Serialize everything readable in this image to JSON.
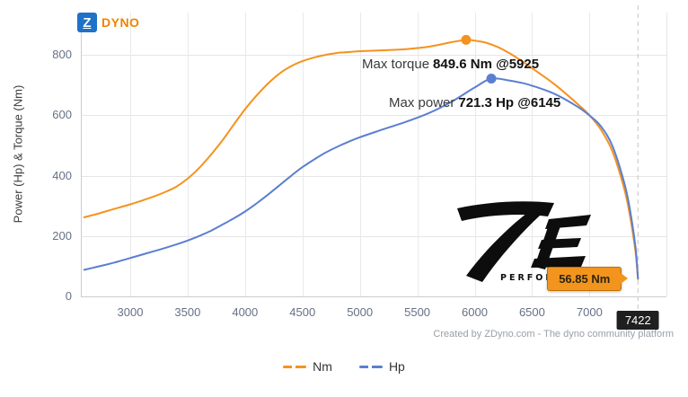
{
  "logo": {
    "z": "Z",
    "text": "DYNO"
  },
  "watermark": {
    "label": "PERFORMANCE"
  },
  "credit": "Created by ZDyno.com - The dyno community platform",
  "chart_data": {
    "type": "line",
    "ylabel": "Power (Hp) & Torque (Nm)",
    "yticks": [
      0,
      200,
      400,
      600,
      800
    ],
    "xticks": [
      3000,
      3500,
      4000,
      4500,
      5000,
      5500,
      6000,
      6500,
      7000
    ],
    "xlim": [
      2570,
      7670
    ],
    "ylim": [
      0,
      940
    ],
    "grid": true,
    "legend_position": "bottom",
    "annotations": {
      "max_torque": {
        "label": "Max torque",
        "value": "849.6 Nm @5925"
      },
      "max_power": {
        "label": "Max power",
        "value": "721.3 Hp @6145"
      }
    },
    "cursor": {
      "rpm": 7422,
      "value": 56.85,
      "label": "56.85 Nm",
      "box_color": "#f2941d",
      "border_color": "#c06f00",
      "x_label_bg": "#1f1f1f"
    },
    "series": [
      {
        "name": "Nm",
        "color": "#f5921e",
        "peak": {
          "x": 5925,
          "y": 849.6
        },
        "x": [
          2600,
          2700,
          2800,
          2900,
          3000,
          3100,
          3200,
          3300,
          3400,
          3500,
          3600,
          3700,
          3800,
          3900,
          4000,
          4100,
          4200,
          4300,
          4400,
          4500,
          4600,
          4700,
          4800,
          4900,
          5000,
          5200,
          5400,
          5600,
          5800,
          5925,
          6000,
          6100,
          6200,
          6300,
          6400,
          6500,
          6700,
          6900,
          7000,
          7100,
          7200,
          7300,
          7350,
          7400,
          7422
        ],
        "y": [
          262,
          272,
          283,
          294,
          305,
          317,
          330,
          345,
          363,
          390,
          425,
          468,
          515,
          568,
          620,
          665,
          705,
          738,
          762,
          779,
          791,
          800,
          806,
          809,
          812,
          815,
          819,
          827,
          842,
          849.6,
          847,
          840,
          826,
          806,
          782,
          756,
          701,
          636,
          600,
          552,
          480,
          360,
          272,
          150,
          56.85
        ]
      },
      {
        "name": "Hp",
        "color": "#5b7fd0",
        "peak": {
          "x": 6145,
          "y": 721.3
        },
        "x": [
          2600,
          2700,
          2800,
          2900,
          3000,
          3100,
          3200,
          3300,
          3400,
          3500,
          3600,
          3700,
          3800,
          3900,
          4000,
          4100,
          4200,
          4300,
          4400,
          4500,
          4600,
          4700,
          4800,
          4900,
          5000,
          5200,
          5400,
          5600,
          5800,
          6000,
          6145,
          6300,
          6400,
          6500,
          6700,
          6900,
          7000,
          7100,
          7200,
          7300,
          7350,
          7400,
          7422
        ],
        "y": [
          88,
          97,
          106,
          116,
          127,
          138,
          149,
          160,
          172,
          185,
          200,
          217,
          237,
          258,
          281,
          308,
          337,
          368,
          399,
          428,
          453,
          476,
          495,
          512,
          527,
          553,
          578,
          607,
          645,
          692,
          721.3,
          715,
          708,
          698,
          670,
          627,
          599,
          563,
          498,
          380,
          292,
          165,
          60
        ]
      }
    ]
  }
}
